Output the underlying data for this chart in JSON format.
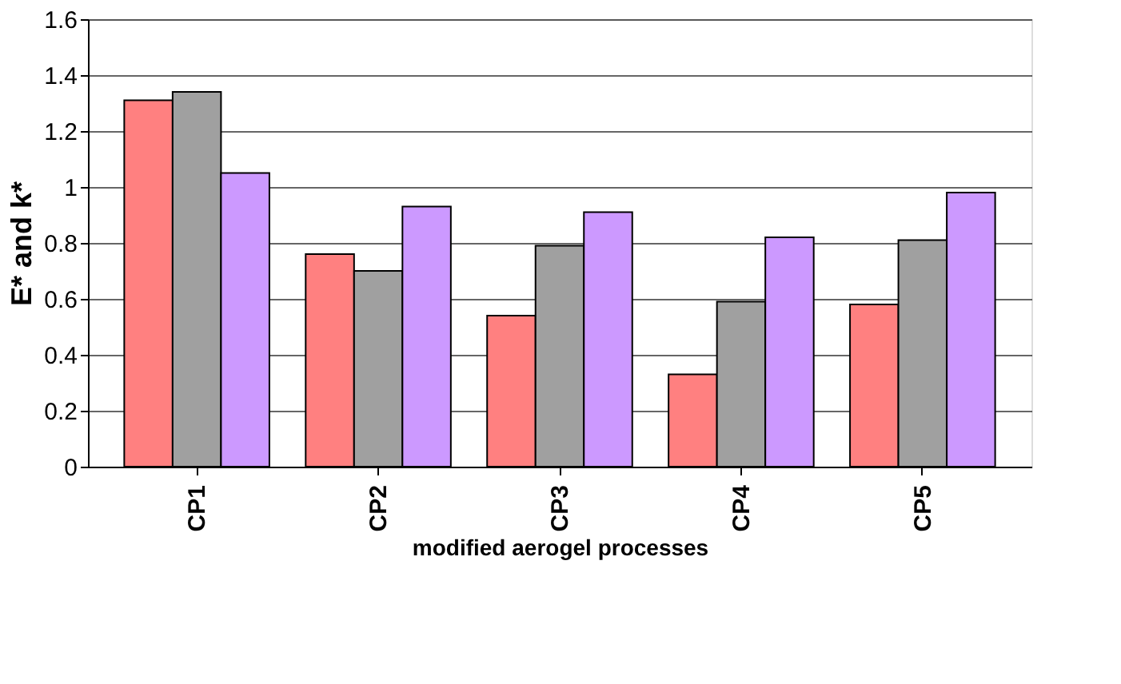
{
  "chart_data": {
    "type": "bar",
    "xlabel": "modified aerogel processes",
    "ylabel": "E* and k*",
    "categories": [
      "CP1",
      "CP2",
      "CP3",
      "CP4",
      "CP5"
    ],
    "series": [
      {
        "color": "#ff8080",
        "values": [
          1.31,
          0.76,
          0.54,
          0.33,
          0.58
        ]
      },
      {
        "color": "#a0a0a0",
        "values": [
          1.34,
          0.7,
          0.79,
          0.59,
          0.81
        ]
      },
      {
        "color": "#cc99ff",
        "values": [
          1.05,
          0.93,
          0.91,
          0.82,
          0.98
        ]
      }
    ],
    "ylim": [
      0,
      1.6
    ],
    "yticks": [
      0,
      0.2,
      0.4,
      0.6,
      0.8,
      1,
      1.2,
      1.4,
      1.6
    ],
    "grid": "y",
    "legend": false
  }
}
